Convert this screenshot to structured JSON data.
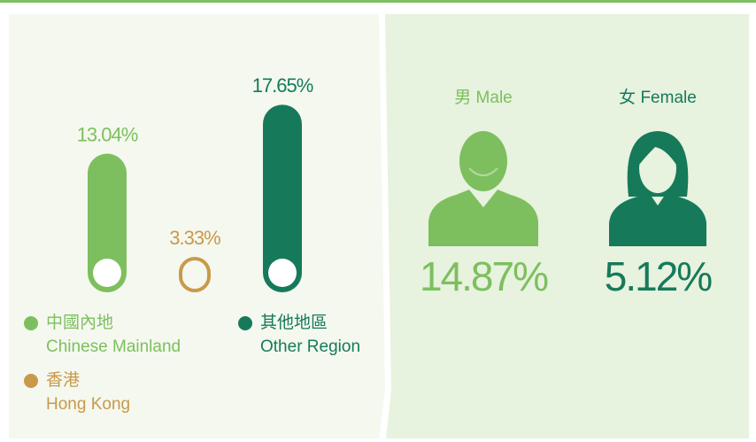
{
  "chart_data": [
    {
      "type": "bar",
      "categories": [
        "中國內地",
        "香港",
        "其他地區"
      ],
      "categories_en": [
        "Chinese Mainland",
        "Hong Kong",
        "Other Region"
      ],
      "values": [
        13.04,
        3.33,
        17.65
      ],
      "value_labels": [
        "13.04%",
        "3.33%",
        "17.65%"
      ],
      "colors": [
        "#7dbf5e",
        "#c9994a",
        "#167a5a"
      ]
    },
    {
      "type": "pictograph",
      "categories": [
        "男 Male",
        "女 Female"
      ],
      "values": [
        14.87,
        5.12
      ],
      "value_labels": [
        "14.87%",
        "5.12%"
      ],
      "colors": [
        "#7dbf5e",
        "#167a5a"
      ]
    }
  ]
}
